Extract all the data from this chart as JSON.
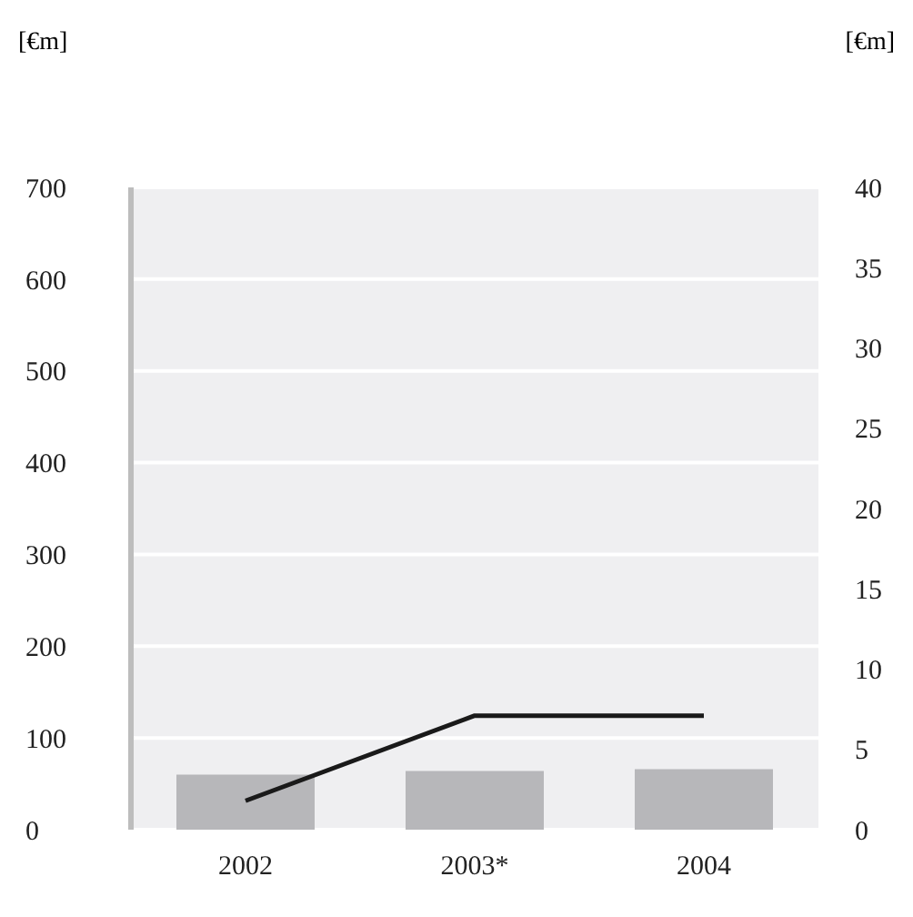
{
  "chart_data": {
    "type": "bar",
    "ylabel": "[€m]",
    "y2label": "[€m]",
    "categories": [
      "2002",
      "2003*",
      "2004"
    ],
    "series": [
      {
        "color": "#b7b7ba",
        "values": [
          60,
          64,
          66
        ]
      },
      {
        "type": "line",
        "color": "#1a1a1a",
        "axis": "y2",
        "values": [
          1.8,
          7.1,
          7.1
        ]
      }
    ],
    "ylim": [
      0,
      700
    ],
    "yticks": [
      0,
      100,
      200,
      300,
      400,
      500,
      600,
      700
    ],
    "y2lim": [
      0,
      40
    ],
    "y2ticks": [
      0,
      5,
      10,
      15,
      20,
      25,
      30,
      35,
      40
    ],
    "grid": "y",
    "legend": false,
    "marker": "none"
  }
}
